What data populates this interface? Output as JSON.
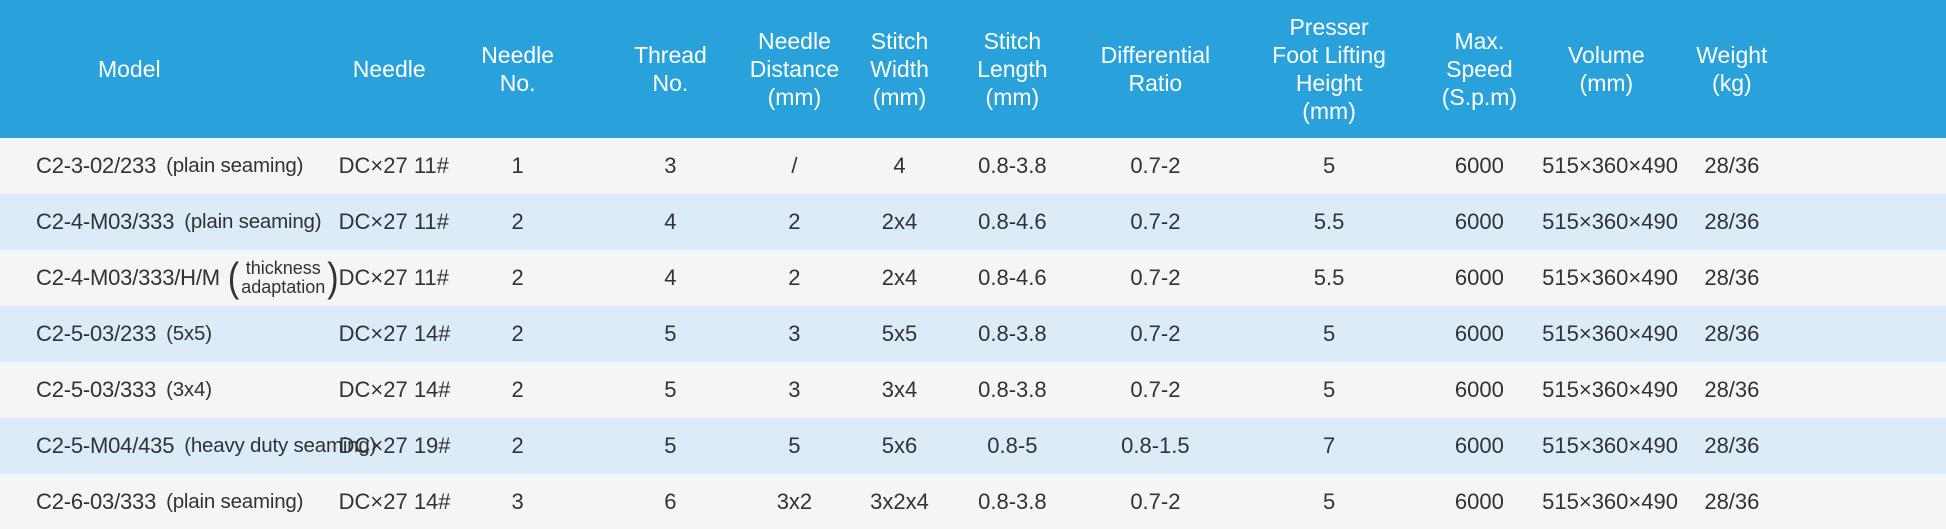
{
  "header": {
    "columns": [
      "Model",
      "Needle",
      "Needle\nNo.",
      "Thread\nNo.",
      "Needle\nDistance\n(mm)",
      "Stitch\nWidth\n(mm)",
      "Stitch\nLength\n(mm)",
      "Differential\nRatio",
      "Presser\nFoot Lifting\nHeight\n(mm)",
      "Max.\nSpeed\n(S.p.m)",
      "Volume\n(mm)",
      "Weight\n(kg)"
    ]
  },
  "glyphs": {
    "paren_open": "(",
    "paren_close": ")"
  },
  "rows": [
    {
      "model": "C2-3-02/233",
      "note": "(plain seaming)",
      "needle": "DC×27 11#",
      "needle_no": "1",
      "thread_no": "3",
      "needle_distance": "/",
      "stitch_width": "4",
      "stitch_length": "0.8-3.8",
      "differential_ratio": "0.7-2",
      "presser_foot_height": "5",
      "max_speed": "6000",
      "volume": "515×360×490",
      "weight": "28/36"
    },
    {
      "model": "C2-4-M03/333",
      "note": "(plain seaming)",
      "needle": "DC×27 11#",
      "needle_no": "2",
      "thread_no": "4",
      "needle_distance": "2",
      "stitch_width": "2x4",
      "stitch_length": "0.8-4.6",
      "differential_ratio": "0.7-2",
      "presser_foot_height": "5.5",
      "max_speed": "6000",
      "volume": "515×360×490",
      "weight": "28/36"
    },
    {
      "model": "C2-4-M03/333/H/M",
      "note_stack": "thickness\nadaptation",
      "needle": "DC×27 11#",
      "needle_no": "2",
      "thread_no": "4",
      "needle_distance": "2",
      "stitch_width": "2x4",
      "stitch_length": "0.8-4.6",
      "differential_ratio": "0.7-2",
      "presser_foot_height": "5.5",
      "max_speed": "6000",
      "volume": "515×360×490",
      "weight": "28/36"
    },
    {
      "model": "C2-5-03/233",
      "note": "(5x5)",
      "needle": "DC×27 14#",
      "needle_no": "2",
      "thread_no": "5",
      "needle_distance": "3",
      "stitch_width": "5x5",
      "stitch_length": "0.8-3.8",
      "differential_ratio": "0.7-2",
      "presser_foot_height": "5",
      "max_speed": "6000",
      "volume": "515×360×490",
      "weight": "28/36"
    },
    {
      "model": "C2-5-03/333",
      "note": "(3x4)",
      "needle": "DC×27 14#",
      "needle_no": "2",
      "thread_no": "5",
      "needle_distance": "3",
      "stitch_width": "3x4",
      "stitch_length": "0.8-3.8",
      "differential_ratio": "0.7-2",
      "presser_foot_height": "5",
      "max_speed": "6000",
      "volume": "515×360×490",
      "weight": "28/36"
    },
    {
      "model": "C2-5-M04/435",
      "note": "(heavy duty seaming)",
      "needle": "DC×27 19#",
      "needle_no": "2",
      "thread_no": "5",
      "needle_distance": "5",
      "stitch_width": "5x6",
      "stitch_length": "0.8-5",
      "differential_ratio": "0.8-1.5",
      "presser_foot_height": "7",
      "max_speed": "6000",
      "volume": "515×360×490",
      "weight": "28/36"
    },
    {
      "model": "C2-6-03/333",
      "note": "(plain seaming)",
      "needle": "DC×27 14#",
      "needle_no": "3",
      "thread_no": "6",
      "needle_distance": "3x2",
      "stitch_width": "3x2x4",
      "stitch_length": "0.8-3.8",
      "differential_ratio": "0.7-2",
      "presser_foot_height": "5",
      "max_speed": "6000",
      "volume": "515×360×490",
      "weight": "28/36"
    }
  ],
  "colors": {
    "header_bg": "#29a2db",
    "header_text": "#ffffff",
    "row_stripe_gray": "#f5f5f6",
    "row_stripe_blue": "#dbecf8",
    "body_text": "#323232"
  }
}
